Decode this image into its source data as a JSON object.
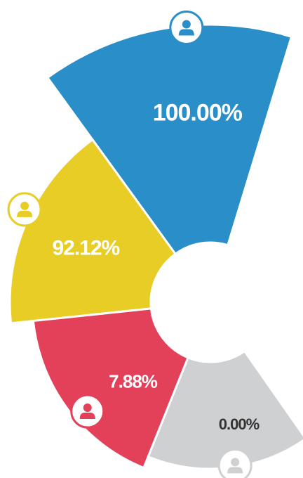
{
  "chart_data": {
    "type": "rose",
    "values": [
      100,
      92.12,
      7.88,
      0
    ],
    "value_labels": [
      "100.00%",
      "92.12%",
      "7.88%",
      "0.00%"
    ],
    "colors": [
      "#2a8fc8",
      "#e8cd27",
      "#e3405a",
      "#cfd0d2"
    ]
  }
}
